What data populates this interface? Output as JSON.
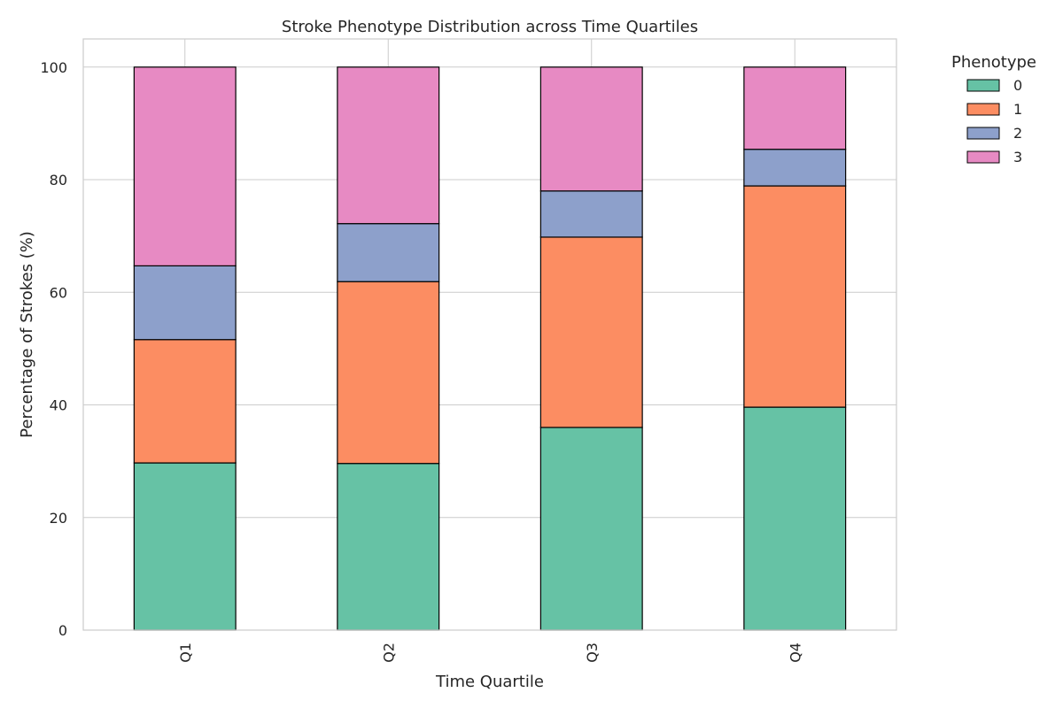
{
  "chart_data": {
    "type": "bar",
    "stacked": true,
    "title": "Stroke Phenotype Distribution across Time Quartiles",
    "xlabel": "Time Quartile",
    "ylabel": "Percentage of Strokes (%)",
    "categories": [
      "Q1",
      "Q2",
      "Q3",
      "Q4"
    ],
    "ylim": [
      0,
      105
    ],
    "yticks": [
      "0",
      "20",
      "40",
      "60",
      "80",
      "100"
    ],
    "grid": true,
    "legend": {
      "title": "Phenotype",
      "placement": "outside-right-top"
    },
    "series": [
      {
        "name": "0",
        "color": "#66c2a5",
        "values": [
          29.7,
          29.6,
          36.0,
          39.6
        ]
      },
      {
        "name": "1",
        "color": "#fc8d62",
        "values": [
          21.9,
          32.3,
          33.8,
          39.3
        ]
      },
      {
        "name": "2",
        "color": "#8da0cb",
        "values": [
          13.1,
          10.3,
          8.2,
          6.5
        ]
      },
      {
        "name": "3",
        "color": "#e78ac3",
        "values": [
          35.3,
          27.8,
          22.0,
          14.6
        ]
      }
    ]
  }
}
